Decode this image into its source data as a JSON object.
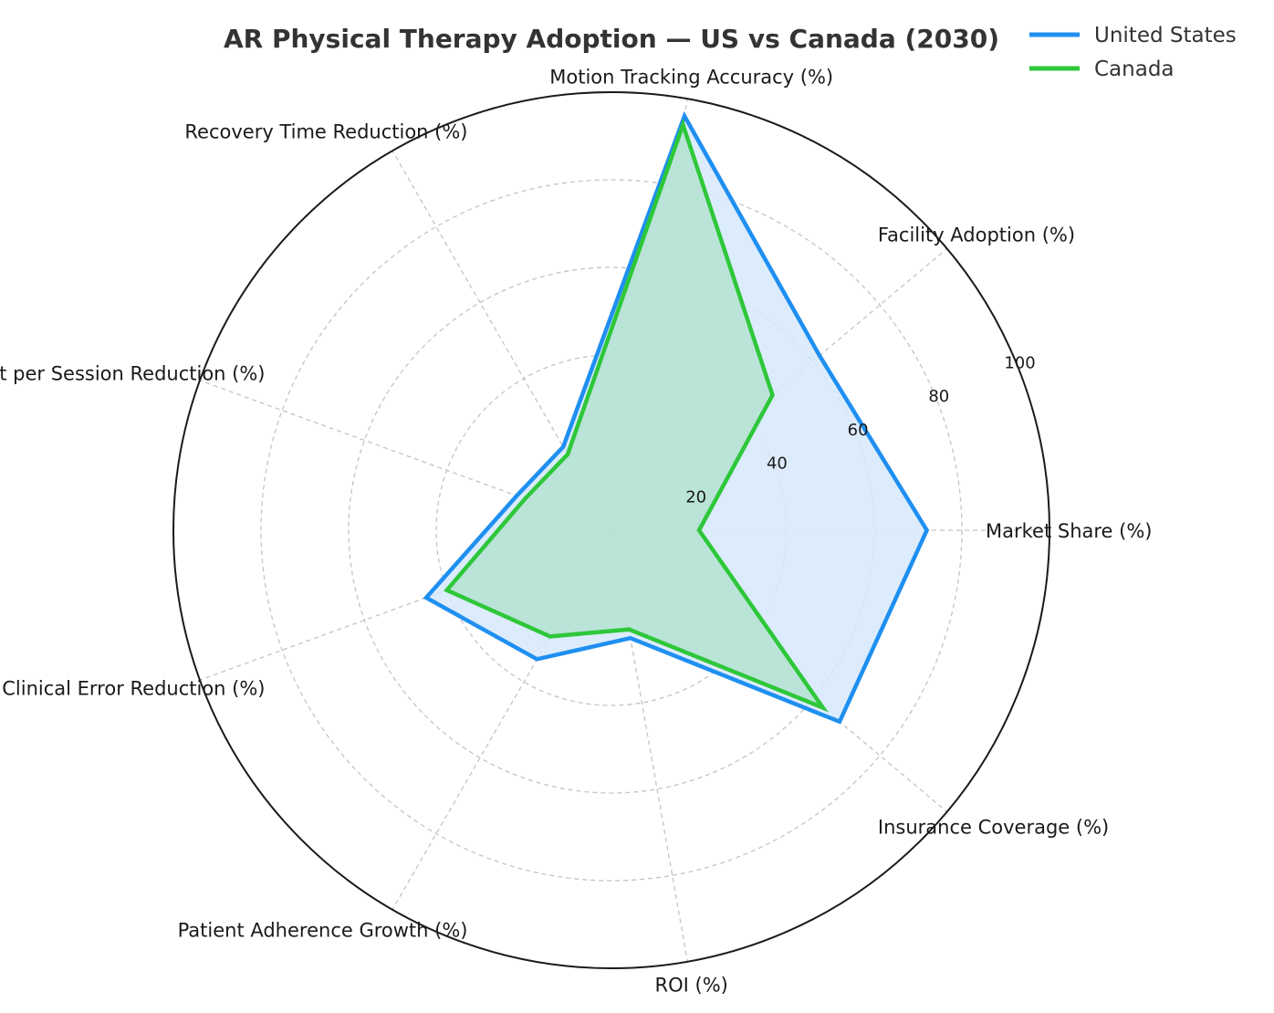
{
  "chart_data": {
    "type": "radar",
    "title": "AR Physical Therapy Adoption — US vs Canada (2030)",
    "axes": [
      "Market Share (%)",
      "Facility Adoption (%)",
      "Motion Tracking Accuracy (%)",
      "Recovery Time Reduction (%)",
      "Cost per Session Reduction (%)",
      "Clinical Error Reduction (%)",
      "Patient Adherence Growth (%)",
      "ROI (%)",
      "Insurance Coverage (%)"
    ],
    "rlim": [
      0,
      100
    ],
    "rticks": [
      "20",
      "40",
      "60",
      "80",
      "100"
    ],
    "rtick_values": [
      20,
      40,
      60,
      80,
      100
    ],
    "grid": true,
    "legend_position": "top-right",
    "series": [
      {
        "name": "United States",
        "color": "#1f8ff0",
        "fill": "#d6e9fb",
        "values": [
          72,
          62,
          96,
          22,
          23,
          45,
          34,
          25,
          68
        ]
      },
      {
        "name": "Canada",
        "color": "#2ec73a",
        "fill": "#a4dfbf",
        "values": [
          20,
          48,
          94,
          20,
          21,
          40,
          28,
          23,
          63
        ]
      }
    ]
  }
}
